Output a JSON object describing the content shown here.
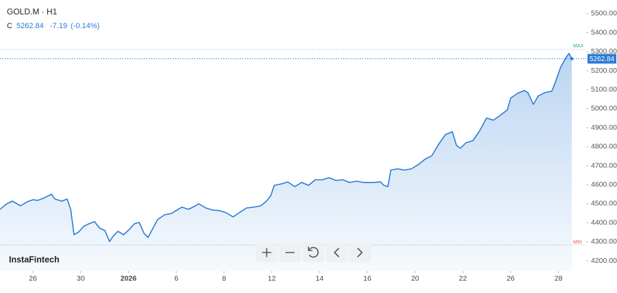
{
  "header": {
    "symbol": "GOLD.M · H1",
    "quote_label": "C",
    "close": 5262.84,
    "change": -7.19,
    "change_pct": "(-0.14%)"
  },
  "logo": "InstaFintech",
  "chart_data": {
    "type": "area",
    "series": [
      {
        "name": "GOLD.M",
        "color": "#2a7bd6",
        "x": [
          -1.38,
          -1.09,
          -0.86,
          -0.52,
          -0.23,
          0,
          0.2,
          0.49,
          0.77,
          0.92,
          1.21,
          1.43,
          1.58,
          1.72,
          1.92,
          2.12,
          2.35,
          2.58,
          2.78,
          3.01,
          3.21,
          3.36,
          3.56,
          3.79,
          4.02,
          4.25,
          4.45,
          4.65,
          4.82,
          4.99,
          5.22,
          5.51,
          5.8,
          6.03,
          6.23,
          6.51,
          6.8,
          6.94,
          7.23,
          7.52,
          7.8,
          8.09,
          8.38,
          8.67,
          8.95,
          9.24,
          9.53,
          9.76,
          9.96,
          10.1,
          10.39,
          10.67,
          10.96,
          11.25,
          11.54,
          11.82,
          12.11,
          12.4,
          12.68,
          12.97,
          13.26,
          13.55,
          13.83,
          14.26,
          14.55,
          14.69,
          14.86,
          14.98,
          15.27,
          15.55,
          15.84,
          16.13,
          16.41,
          16.7,
          16.99,
          17.27,
          17.56,
          17.73,
          17.9,
          18.13,
          18.42,
          18.71,
          18.99,
          19.28,
          19.57,
          19.86,
          20.0,
          20.29,
          20.57,
          20.72,
          20.95,
          21.15,
          21.43,
          21.72,
          21.87,
          22.09,
          22.3,
          22.44,
          22.56
        ],
        "values": [
          4471,
          4500,
          4514,
          4489,
          4511,
          4521,
          4518,
          4532,
          4550,
          4525,
          4514,
          4525,
          4471,
          4337,
          4352,
          4381,
          4395,
          4406,
          4373,
          4359,
          4301,
          4330,
          4355,
          4337,
          4363,
          4395,
          4402,
          4344,
          4323,
          4363,
          4417,
          4442,
          4449,
          4467,
          4482,
          4471,
          4489,
          4500,
          4478,
          4467,
          4464,
          4453,
          4431,
          4456,
          4478,
          4482,
          4489,
          4511,
          4543,
          4597,
          4604,
          4615,
          4590,
          4612,
          4597,
          4626,
          4626,
          4637,
          4623,
          4626,
          4612,
          4619,
          4612,
          4612,
          4615,
          4597,
          4590,
          4677,
          4684,
          4677,
          4684,
          4706,
          4734,
          4753,
          4814,
          4864,
          4879,
          4807,
          4792,
          4821,
          4832,
          4886,
          4951,
          4940,
          4966,
          4994,
          5056,
          5081,
          5096,
          5085,
          5023,
          5067,
          5085,
          5092,
          5139,
          5218,
          5265,
          5291,
          5262.84
        ]
      }
    ],
    "xlim": [
      -1.38,
      23.16
    ],
    "xticks": [
      {
        "value": 0,
        "label": "26"
      },
      {
        "value": 2,
        "label": "30"
      },
      {
        "value": 4,
        "label": "2026"
      },
      {
        "value": 6,
        "label": "6"
      },
      {
        "value": 8,
        "label": "8"
      },
      {
        "value": 10,
        "label": "12"
      },
      {
        "value": 12,
        "label": "14"
      },
      {
        "value": 14,
        "label": "16"
      },
      {
        "value": 16,
        "label": "20"
      },
      {
        "value": 18,
        "label": "22"
      },
      {
        "value": 20,
        "label": "26"
      },
      {
        "value": 22,
        "label": "28"
      }
    ],
    "ylim": [
      4146,
      5572
    ],
    "yticks": [
      {
        "value": 4200,
        "label": "4200.00"
      },
      {
        "value": 4300,
        "label": "4300.00"
      },
      {
        "value": 4400,
        "label": "4400.00"
      },
      {
        "value": 4500,
        "label": "4500.00"
      },
      {
        "value": 4600,
        "label": "4600.00"
      },
      {
        "value": 4700,
        "label": "4700.00"
      },
      {
        "value": 4800,
        "label": "4800.00"
      },
      {
        "value": 4900,
        "label": "4900.00"
      },
      {
        "value": 5000,
        "label": "5000.00"
      },
      {
        "value": 5100,
        "label": "5100.00"
      },
      {
        "value": 5200,
        "label": "5200.00"
      },
      {
        "value": 5300,
        "label": "5300.00"
      },
      {
        "value": 5400,
        "label": "5400.00"
      },
      {
        "value": 5500,
        "label": "5500.00"
      }
    ],
    "max_line": {
      "label": "MAX",
      "value": 5312,
      "color": "#26a69a"
    },
    "min_line": {
      "label": "MIN",
      "value": 4283,
      "color": "#ef5350"
    },
    "grid": false
  }
}
